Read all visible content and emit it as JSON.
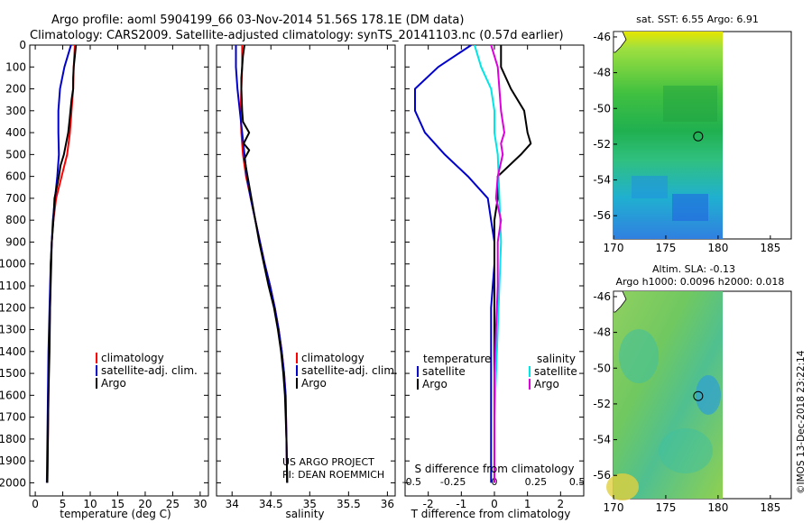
{
  "header": {
    "line1": "Argo profile: aoml 5904199_66 03-Nov-2014 51.56S 178.1E (DM data)",
    "line2": "Climatology: CARS2009. Satellite-adjusted climatology: synTS_20141103.nc (0.57d earlier)"
  },
  "credits": {
    "project": "US ARGO PROJECT",
    "pi": "PI: DEAN ROEMMICH",
    "imos": "©IMOS 13-Dec-2018 23:22:14"
  },
  "colors": {
    "climatology": "#ff0000",
    "satellite": "#0000cc",
    "argo": "#000000",
    "satellite_salinity": "#00e5e5",
    "argo_salinity": "#dd00dd"
  },
  "chart_data": [
    {
      "id": "temperature",
      "type": "line",
      "xlabel": "temperature (deg C)",
      "ylabel": "",
      "xlim": [
        -1,
        31.5
      ],
      "ylim": [
        2060,
        0
      ],
      "xticks": [
        0,
        5,
        10,
        15,
        20,
        25,
        30
      ],
      "yticks": [
        0,
        100,
        200,
        300,
        400,
        500,
        600,
        700,
        800,
        900,
        1000,
        1100,
        1200,
        1300,
        1400,
        1500,
        1600,
        1700,
        1800,
        1900,
        2000
      ],
      "legend": [
        "climatology",
        "satellite-adj. clim.",
        "Argo"
      ],
      "legend_position": "lower-right",
      "series": [
        {
          "name": "climatology",
          "color_key": "climatology",
          "points": [
            [
              7.2,
              0
            ],
            [
              7.0,
              100
            ],
            [
              6.9,
              200
            ],
            [
              6.6,
              300
            ],
            [
              6.3,
              400
            ],
            [
              5.8,
              500
            ],
            [
              4.8,
              600
            ],
            [
              3.8,
              700
            ],
            [
              3.3,
              800
            ],
            [
              3.0,
              900
            ],
            [
              2.8,
              1000
            ],
            [
              2.7,
              1200
            ],
            [
              2.5,
              1400
            ],
            [
              2.4,
              1600
            ],
            [
              2.3,
              1800
            ],
            [
              2.2,
              2000
            ]
          ]
        },
        {
          "name": "satellite-adj. clim.",
          "color_key": "satellite",
          "points": [
            [
              6.5,
              0
            ],
            [
              5.3,
              100
            ],
            [
              4.5,
              200
            ],
            [
              4.2,
              300
            ],
            [
              4.2,
              400
            ],
            [
              4.3,
              500
            ],
            [
              4.0,
              600
            ],
            [
              3.6,
              700
            ],
            [
              3.2,
              800
            ],
            [
              3.0,
              900
            ],
            [
              2.8,
              1000
            ],
            [
              2.6,
              1200
            ],
            [
              2.4,
              1400
            ],
            [
              2.3,
              1600
            ],
            [
              2.2,
              1800
            ],
            [
              2.1,
              2000
            ]
          ]
        },
        {
          "name": "Argo",
          "color_key": "argo",
          "points": [
            [
              7.4,
              0
            ],
            [
              7.2,
              50
            ],
            [
              7.0,
              100
            ],
            [
              6.9,
              150
            ],
            [
              6.9,
              200
            ],
            [
              6.6,
              250
            ],
            [
              6.4,
              300
            ],
            [
              6.2,
              350
            ],
            [
              6.0,
              400
            ],
            [
              5.6,
              450
            ],
            [
              5.2,
              500
            ],
            [
              4.6,
              550
            ],
            [
              4.3,
              600
            ],
            [
              3.9,
              650
            ],
            [
              3.5,
              700
            ],
            [
              3.3,
              800
            ],
            [
              3.0,
              900
            ],
            [
              2.9,
              1000
            ],
            [
              2.7,
              1200
            ],
            [
              2.6,
              1400
            ],
            [
              2.4,
              1600
            ],
            [
              2.3,
              1800
            ],
            [
              2.2,
              2000
            ]
          ]
        }
      ]
    },
    {
      "id": "salinity",
      "type": "line",
      "xlabel": "salinity",
      "ylabel": "",
      "xlim": [
        33.8,
        36.1
      ],
      "ylim": [
        2060,
        0
      ],
      "xticks": [
        34,
        34.5,
        35,
        35.5,
        36
      ],
      "xtick_labels": [
        "34",
        "34.5",
        "35",
        "35.5",
        "36"
      ],
      "legend": [
        "climatology",
        "satellite-adj. clim.",
        "Argo"
      ],
      "legend_position": "lower-right",
      "series": [
        {
          "name": "climatology",
          "color_key": "climatology",
          "points": [
            [
              34.13,
              0
            ],
            [
              34.13,
              100
            ],
            [
              34.12,
              200
            ],
            [
              34.11,
              300
            ],
            [
              34.12,
              400
            ],
            [
              34.14,
              500
            ],
            [
              34.18,
              600
            ],
            [
              34.24,
              700
            ],
            [
              34.3,
              800
            ],
            [
              34.36,
              900
            ],
            [
              34.42,
              1000
            ],
            [
              34.49,
              1100
            ],
            [
              34.55,
              1200
            ],
            [
              34.6,
              1300
            ],
            [
              34.64,
              1400
            ],
            [
              34.67,
              1500
            ],
            [
              34.69,
              1600
            ],
            [
              34.7,
              1800
            ],
            [
              34.71,
              2000
            ]
          ]
        },
        {
          "name": "satellite-adj. clim.",
          "color_key": "satellite",
          "points": [
            [
              34.05,
              0
            ],
            [
              34.05,
              100
            ],
            [
              34.07,
              200
            ],
            [
              34.1,
              300
            ],
            [
              34.13,
              400
            ],
            [
              34.16,
              500
            ],
            [
              34.19,
              600
            ],
            [
              34.24,
              700
            ],
            [
              34.3,
              800
            ],
            [
              34.36,
              900
            ],
            [
              34.42,
              1000
            ],
            [
              34.49,
              1100
            ],
            [
              34.55,
              1200
            ],
            [
              34.6,
              1300
            ],
            [
              34.64,
              1400
            ],
            [
              34.67,
              1500
            ],
            [
              34.69,
              1600
            ],
            [
              34.7,
              1800
            ],
            [
              34.71,
              2000
            ]
          ]
        },
        {
          "name": "Argo",
          "color_key": "argo",
          "points": [
            [
              34.16,
              0
            ],
            [
              34.14,
              50
            ],
            [
              34.13,
              100
            ],
            [
              34.12,
              150
            ],
            [
              34.12,
              200
            ],
            [
              34.13,
              300
            ],
            [
              34.14,
              350
            ],
            [
              34.22,
              400
            ],
            [
              34.15,
              450
            ],
            [
              34.22,
              480
            ],
            [
              34.16,
              520
            ],
            [
              34.2,
              600
            ],
            [
              34.25,
              700
            ],
            [
              34.3,
              800
            ],
            [
              34.35,
              900
            ],
            [
              34.41,
              1000
            ],
            [
              34.47,
              1100
            ],
            [
              34.54,
              1200
            ],
            [
              34.59,
              1300
            ],
            [
              34.63,
              1400
            ],
            [
              34.66,
              1500
            ],
            [
              34.68,
              1600
            ],
            [
              34.7,
              1800
            ],
            [
              34.71,
              2000
            ]
          ]
        }
      ]
    },
    {
      "id": "difference",
      "type": "line",
      "xlabel": "T difference from climatology",
      "xlabel_top": "S difference from climatology",
      "ylabel": "",
      "xlim": [
        -2.7,
        2.7
      ],
      "ylim": [
        2060,
        0
      ],
      "xticks": [
        -2,
        -1,
        0,
        1,
        2
      ],
      "xticks_top": [
        -0.5,
        -0.25,
        0,
        0.25,
        0.5
      ],
      "xtick_labels_top": [
        "-0.5",
        "-0.25",
        "0",
        "0.25",
        "0.5"
      ],
      "legend_groups": [
        {
          "title": "temperature",
          "entries": [
            "satellite",
            "Argo"
          ]
        },
        {
          "title": "salinity",
          "entries": [
            "satellite",
            "Argo"
          ]
        }
      ],
      "legend_position": "lower",
      "series": [
        {
          "name": "temperature satellite",
          "color_key": "satellite",
          "points": [
            [
              -0.7,
              0
            ],
            [
              -1.7,
              100
            ],
            [
              -2.4,
              200
            ],
            [
              -2.4,
              300
            ],
            [
              -2.1,
              400
            ],
            [
              -1.5,
              500
            ],
            [
              -0.8,
              600
            ],
            [
              -0.2,
              700
            ],
            [
              -0.1,
              800
            ],
            [
              0.0,
              900
            ],
            [
              0.0,
              1000
            ],
            [
              -0.1,
              1200
            ],
            [
              -0.1,
              1400
            ],
            [
              -0.1,
              1600
            ],
            [
              -0.1,
              1800
            ],
            [
              -0.1,
              2000
            ]
          ]
        },
        {
          "name": "temperature Argo",
          "color_key": "argo",
          "points": [
            [
              0.2,
              0
            ],
            [
              0.2,
              100
            ],
            [
              0.5,
              200
            ],
            [
              0.9,
              300
            ],
            [
              1.0,
              400
            ],
            [
              1.1,
              450
            ],
            [
              0.8,
              500
            ],
            [
              0.1,
              600
            ],
            [
              0.1,
              700
            ],
            [
              0.0,
              800
            ],
            [
              0.0,
              1000
            ],
            [
              0.0,
              1400
            ],
            [
              0.0,
              2000
            ]
          ]
        },
        {
          "name": "salinity satellite",
          "color_key": "satellite_salinity",
          "points": [
            [
              -0.6,
              0
            ],
            [
              -0.4,
              100
            ],
            [
              -0.1,
              200
            ],
            [
              0.0,
              300
            ],
            [
              0.0,
              400
            ],
            [
              0.1,
              500
            ],
            [
              0.15,
              700
            ],
            [
              0.2,
              900
            ],
            [
              0.15,
              1100
            ],
            [
              0.1,
              1300
            ],
            [
              0.05,
              1500
            ],
            [
              0.0,
              1700
            ],
            [
              0.0,
              2000
            ]
          ]
        },
        {
          "name": "salinity Argo",
          "color_key": "argo_salinity",
          "points": [
            [
              -0.1,
              0
            ],
            [
              0.1,
              100
            ],
            [
              0.15,
              200
            ],
            [
              0.2,
              300
            ],
            [
              0.3,
              400
            ],
            [
              0.2,
              450
            ],
            [
              0.25,
              500
            ],
            [
              0.1,
              600
            ],
            [
              0.05,
              700
            ],
            [
              0.2,
              800
            ],
            [
              0.1,
              900
            ],
            [
              0.1,
              1100
            ],
            [
              0.05,
              1300
            ],
            [
              0.0,
              1500
            ],
            [
              0.0,
              2000
            ]
          ]
        }
      ]
    },
    {
      "id": "sst_map",
      "type": "heatmap",
      "title": "sat. SST: 6.55 Argo: 6.91",
      "xlim": [
        170,
        187
      ],
      "ylim": [
        -57.3,
        -45.7
      ],
      "xticks": [
        170,
        175,
        180,
        185
      ],
      "yticks": [
        -46,
        -48,
        -50,
        -52,
        -54,
        -56
      ],
      "data_extent": [
        170,
        180
      ],
      "marker": {
        "lon": 178.1,
        "lat": -51.56
      }
    },
    {
      "id": "sla_map",
      "type": "heatmap",
      "title": "Altim. SLA: -0.13",
      "subtitle": "Argo h1000: 0.0096 h2000: 0.018",
      "xlim": [
        170,
        187
      ],
      "ylim": [
        -57.3,
        -45.7
      ],
      "xticks": [
        170,
        175,
        180,
        185
      ],
      "yticks": [
        -46,
        -48,
        -50,
        -52,
        -54,
        -56
      ],
      "data_extent": [
        170,
        180
      ],
      "marker": {
        "lon": 178.1,
        "lat": -51.56
      }
    }
  ]
}
